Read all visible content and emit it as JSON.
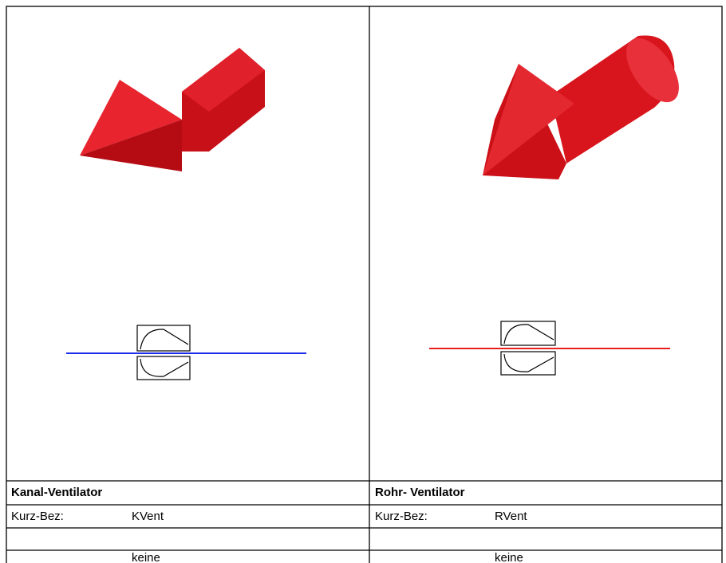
{
  "columns": [
    {
      "title": "Kanal-Ventilator",
      "short_label": "Kurz-Bez:",
      "short_value": "KVent",
      "extra": "keine"
    },
    {
      "title": "Rohr- Ventilator",
      "short_label": "Kurz-Bez:",
      "short_value": "RVent",
      "extra": "keine"
    }
  ]
}
